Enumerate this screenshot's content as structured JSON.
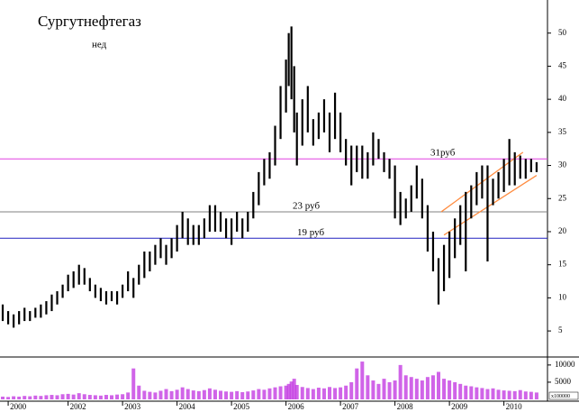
{
  "chart_data": {
    "type": "range-bar",
    "title": "Сургутнефтегаз",
    "subtitle": "нед",
    "color": "#000000",
    "x": [
      2000.8,
      2000.9,
      2001.0,
      2001.1,
      2001.2,
      2001.3,
      2001.4,
      2001.5,
      2001.6,
      2001.7,
      2001.8,
      2001.9,
      2002.0,
      2002.1,
      2002.2,
      2002.3,
      2002.4,
      2002.5,
      2002.6,
      2002.7,
      2002.8,
      2002.9,
      2003.0,
      2003.1,
      2003.2,
      2003.3,
      2003.4,
      2003.5,
      2003.6,
      2003.7,
      2003.8,
      2003.9,
      2004.0,
      2004.1,
      2004.2,
      2004.3,
      2004.4,
      2004.5,
      2004.6,
      2004.7,
      2004.8,
      2004.9,
      2005.0,
      2005.1,
      2005.2,
      2005.3,
      2005.4,
      2005.5,
      2005.6,
      2005.7,
      2005.8,
      2005.9,
      2006.0,
      2006.05,
      2006.1,
      2006.15,
      2006.2,
      2006.3,
      2006.4,
      2006.5,
      2006.6,
      2006.7,
      2006.8,
      2006.9,
      2007.0,
      2007.1,
      2007.2,
      2007.3,
      2007.4,
      2007.5,
      2007.6,
      2007.7,
      2007.8,
      2007.9,
      2008.0,
      2008.1,
      2008.2,
      2008.3,
      2008.4,
      2008.5,
      2008.6,
      2008.7,
      2008.8,
      2008.9,
      2009.0,
      2009.1,
      2009.2,
      2009.3,
      2009.4,
      2009.5,
      2009.6,
      2009.7,
      2009.8,
      2009.9,
      2010.0,
      2010.1,
      2010.2,
      2010.3,
      2010.4,
      2010.5,
      2010.6
    ],
    "high": [
      9,
      8,
      7.5,
      8,
      8.5,
      8,
      8.5,
      9,
      9.5,
      10.5,
      11,
      12,
      13.5,
      14,
      15,
      14.5,
      13,
      12,
      11.5,
      11,
      11,
      11,
      12,
      14,
      13,
      15,
      17,
      17,
      18,
      19,
      18,
      19,
      21,
      23,
      22,
      21,
      21,
      22,
      24,
      24,
      23,
      22,
      22,
      23,
      22,
      23,
      26,
      29,
      31,
      32,
      36,
      42,
      46,
      50,
      51,
      45,
      38,
      40,
      42,
      37,
      38,
      40,
      38,
      41,
      38,
      34,
      33,
      33,
      33,
      32,
      35,
      34,
      32,
      31,
      30,
      26,
      25,
      27,
      30,
      28,
      24,
      20,
      16,
      18,
      20,
      22,
      24,
      26,
      27,
      29,
      30,
      30,
      28,
      29,
      31,
      34,
      32,
      31.5,
      31,
      31,
      30.5
    ],
    "low": [
      6.5,
      6,
      5.5,
      6,
      6.5,
      6.5,
      7,
      7,
      7.5,
      8,
      9,
      10,
      11,
      11.5,
      12,
      12,
      11,
      10,
      9.5,
      9,
      9.5,
      9,
      10,
      11,
      10,
      12,
      13,
      14,
      15,
      16,
      15,
      16,
      17,
      19,
      18,
      18,
      18,
      19,
      20,
      20,
      20,
      19,
      18,
      20,
      19,
      20,
      22,
      24,
      27,
      28,
      30,
      34,
      38,
      42,
      40,
      35,
      30,
      33,
      35,
      33,
      34,
      35,
      32,
      34,
      32,
      30,
      27,
      29,
      28,
      28,
      30,
      31,
      29,
      28,
      22,
      21,
      22,
      23,
      25,
      22,
      17,
      14,
      9,
      11,
      13,
      16,
      18,
      14,
      22,
      24,
      25,
      15.5,
      24,
      25,
      26,
      27,
      27,
      28,
      28,
      29,
      29
    ],
    "xlim": [
      2000.75,
      2010.8
    ],
    "xticks": [
      {
        "value": 2000.9,
        "label": "2000"
      },
      2002,
      2003,
      2004,
      2005,
      2006,
      2007,
      2008,
      2009,
      2010
    ],
    "ylim": [
      1.2,
      55
    ],
    "yticks": [
      5,
      10,
      15,
      20,
      25,
      30,
      35,
      40,
      45,
      50
    ],
    "hlines": [
      {
        "value": 31,
        "label": "31руб",
        "color": "#e040e0"
      },
      {
        "value": 23,
        "label": "23 руб",
        "color": "#808080"
      },
      {
        "value": 19,
        "label": "19 руб",
        "color": "#2020c0"
      }
    ],
    "trendlines": [
      {
        "x": [
          2008.85,
          2010.35
        ],
        "y": [
          23,
          32
        ],
        "color": "#ff8c40"
      },
      {
        "x": [
          2008.9,
          2010.6
        ],
        "y": [
          19.5,
          28.5
        ],
        "color": "#ff8c40"
      }
    ],
    "volume": [
      800,
      700,
      900,
      800,
      1000,
      900,
      1100,
      1000,
      1200,
      1300,
      1200,
      1500,
      1600,
      1400,
      1800,
      1500,
      1300,
      1200,
      1100,
      1300,
      1200,
      1400,
      1500,
      2000,
      9000,
      4000,
      2500,
      2200,
      2000,
      2500,
      3000,
      2400,
      2800,
      3500,
      3000,
      2600,
      2400,
      2700,
      3200,
      2800,
      2500,
      2300,
      2200,
      2400,
      2100,
      2300,
      2600,
      3000,
      2800,
      3200,
      3500,
      3800,
      4000,
      4500,
      5200,
      6000,
      4200,
      3600,
      3300,
      3000,
      3400,
      3200,
      3600,
      3300,
      3500,
      4000,
      5000,
      9000,
      11000,
      7000,
      5500,
      4500,
      6000,
      5000,
      5500,
      10000,
      7000,
      6500,
      6000,
      5500,
      6500,
      7000,
      8000,
      6000,
      5500,
      5000,
      4500,
      4000,
      3800,
      3500,
      3300,
      3000,
      3200,
      2800,
      2600,
      2500,
      2400,
      2700,
      2300,
      2200,
      2000
    ],
    "volume_color": "#c030e0",
    "volume_ylim": [
      0,
      11800
    ],
    "volume_yticks": [
      5000,
      10000
    ],
    "volume_unit": "x100000"
  }
}
